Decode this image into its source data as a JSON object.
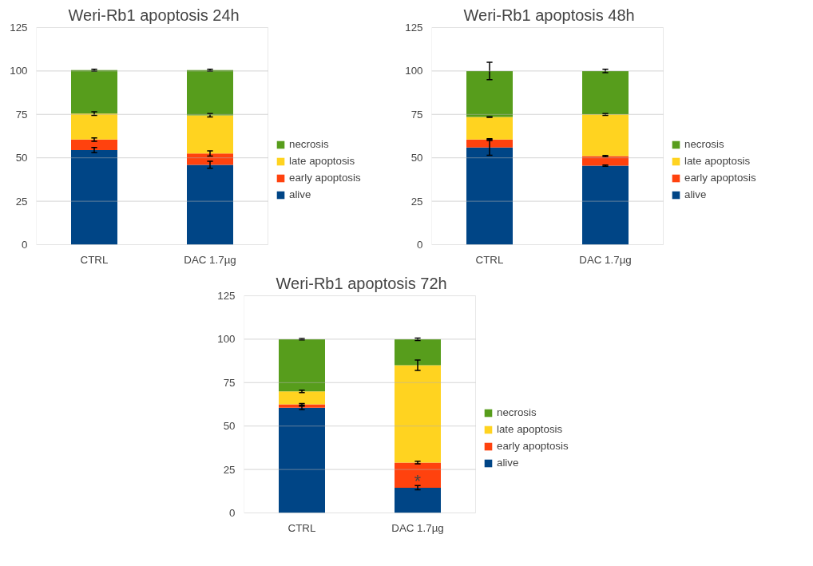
{
  "chart_data": [
    {
      "type": "bar",
      "title": "Weri-Rb1 apoptosis 24h",
      "categories": [
        "CTRL",
        "DAC 1.7µg"
      ],
      "stacked": true,
      "ylim": [
        0,
        125
      ],
      "yticks": [
        0,
        25,
        50,
        75,
        100,
        125
      ],
      "grid": "y",
      "legend": "right",
      "series": [
        {
          "name": "alive",
          "color": "#004586",
          "values": [
            54.5,
            46
          ],
          "errors": [
            1.5,
            2
          ]
        },
        {
          "name": "early apoptosis",
          "color": "#ff420e",
          "values": [
            6,
            6.5
          ],
          "errors": [
            1,
            1.5
          ]
        },
        {
          "name": "late apoptosis",
          "color": "#ffd320",
          "values": [
            15,
            22
          ],
          "errors": [
            1,
            1
          ]
        },
        {
          "name": "necrosis",
          "color": "#579d1c",
          "values": [
            25,
            26
          ],
          "errors": [
            0.5,
            0.5
          ]
        }
      ]
    },
    {
      "type": "bar",
      "title": "Weri-Rb1 apoptosis 48h",
      "categories": [
        "CTRL",
        "DAC 1.7µg"
      ],
      "stacked": true,
      "ylim": [
        0,
        125
      ],
      "yticks": [
        0,
        25,
        50,
        75,
        100,
        125
      ],
      "grid": "y",
      "legend": "right",
      "series": [
        {
          "name": "alive",
          "color": "#004586",
          "values": [
            56,
            45.5
          ],
          "errors": [
            4.5,
            0.3
          ]
        },
        {
          "name": "early apoptosis",
          "color": "#ff420e",
          "values": [
            4.5,
            5.5
          ],
          "errors": [
            0.5,
            0.3
          ]
        },
        {
          "name": "late apoptosis",
          "color": "#ffd320",
          "values": [
            13,
            24
          ],
          "errors": [
            0.2,
            0.5
          ]
        },
        {
          "name": "necrosis",
          "color": "#579d1c",
          "values": [
            26.5,
            25
          ],
          "errors": [
            5,
            1
          ]
        }
      ]
    },
    {
      "type": "bar",
      "title": "Weri-Rb1 apoptosis 72h",
      "categories": [
        "CTRL",
        "DAC 1.7µg"
      ],
      "stacked": true,
      "ylim": [
        0,
        125
      ],
      "yticks": [
        0,
        25,
        50,
        75,
        100,
        125
      ],
      "grid": "y",
      "legend": "right",
      "annotations": [
        "*"
      ],
      "series": [
        {
          "name": "alive",
          "color": "#004586",
          "values": [
            60.5,
            14.5
          ],
          "errors": [
            1,
            1.2
          ]
        },
        {
          "name": "early apoptosis",
          "color": "#ff420e",
          "values": [
            2,
            14.5
          ],
          "errors": [
            0.5,
            0.7
          ]
        },
        {
          "name": "late apoptosis",
          "color": "#ffd320",
          "values": [
            7.5,
            56
          ],
          "errors": [
            0.7,
            3
          ]
        },
        {
          "name": "necrosis",
          "color": "#579d1c",
          "values": [
            30,
            15
          ],
          "errors": [
            0.4,
            0.7
          ]
        }
      ]
    }
  ]
}
